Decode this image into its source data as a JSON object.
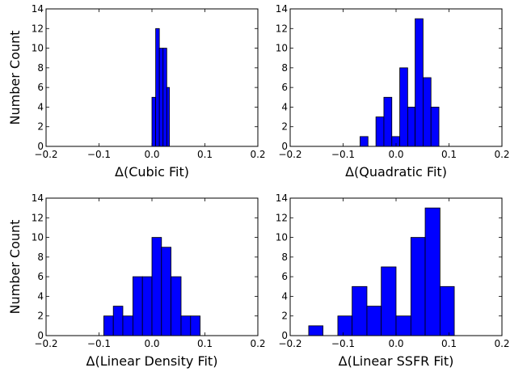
{
  "chart_data": [
    {
      "type": "bar",
      "xlabel": "Δ(Cubic Fit)",
      "ylabel": "Number Count",
      "xlim": [
        -0.2,
        0.2
      ],
      "ylim": [
        0,
        14
      ],
      "xticks": [
        -0.2,
        -0.1,
        0.0,
        0.1,
        0.2
      ],
      "xtick_labels": [
        "−0.2",
        "−0.1",
        "0.0",
        "0.1",
        "0.2"
      ],
      "yticks": [
        0,
        2,
        4,
        6,
        8,
        10,
        12,
        14
      ],
      "ytick_labels": [
        "0",
        "2",
        "4",
        "6",
        "8",
        "10",
        "12",
        "14"
      ],
      "bars": [
        {
          "x0": 0.0,
          "x1": 0.007,
          "count": 5
        },
        {
          "x0": 0.007,
          "x1": 0.014,
          "count": 12
        },
        {
          "x0": 0.014,
          "x1": 0.021,
          "count": 10
        },
        {
          "x0": 0.021,
          "x1": 0.028,
          "count": 10
        },
        {
          "x0": 0.028,
          "x1": 0.033,
          "count": 6
        }
      ],
      "bar_color": "#0000ff",
      "grid": false
    },
    {
      "type": "bar",
      "xlabel": "Δ(Quadratic Fit)",
      "ylabel": "",
      "xlim": [
        -0.2,
        0.2
      ],
      "ylim": [
        0,
        14
      ],
      "xticks": [
        -0.2,
        -0.1,
        0.0,
        0.1,
        0.2
      ],
      "xtick_labels": [
        "−0.2",
        "−0.1",
        "0.0",
        "0.1",
        "0.2"
      ],
      "yticks": [
        0,
        2,
        4,
        6,
        8,
        10,
        12,
        14
      ],
      "ytick_labels": [
        "0",
        "2",
        "4",
        "6",
        "8",
        "10",
        "12",
        "14"
      ],
      "bars": [
        {
          "x0": -0.068,
          "x1": -0.053,
          "count": 1
        },
        {
          "x0": -0.053,
          "x1": -0.038,
          "count": 0
        },
        {
          "x0": -0.038,
          "x1": -0.023,
          "count": 3
        },
        {
          "x0": -0.023,
          "x1": -0.008,
          "count": 5
        },
        {
          "x0": -0.008,
          "x1": 0.007,
          "count": 1
        },
        {
          "x0": 0.007,
          "x1": 0.022,
          "count": 8
        },
        {
          "x0": 0.022,
          "x1": 0.036,
          "count": 4
        },
        {
          "x0": 0.036,
          "x1": 0.051,
          "count": 13
        },
        {
          "x0": 0.051,
          "x1": 0.066,
          "count": 7
        },
        {
          "x0": 0.066,
          "x1": 0.081,
          "count": 4
        }
      ],
      "bar_color": "#0000ff",
      "grid": false
    },
    {
      "type": "bar",
      "xlabel": "Δ(Linear Density Fit)",
      "ylabel": "Number Count",
      "xlim": [
        -0.2,
        0.2
      ],
      "ylim": [
        0,
        14
      ],
      "xticks": [
        -0.2,
        -0.1,
        0.0,
        0.1,
        0.2
      ],
      "xtick_labels": [
        "−0.2",
        "−0.1",
        "0.0",
        "0.1",
        "0.2"
      ],
      "yticks": [
        0,
        2,
        4,
        6,
        8,
        10,
        12,
        14
      ],
      "ytick_labels": [
        "0",
        "2",
        "4",
        "6",
        "8",
        "10",
        "12",
        "14"
      ],
      "bars": [
        {
          "x0": -0.091,
          "x1": -0.073,
          "count": 2
        },
        {
          "x0": -0.073,
          "x1": -0.055,
          "count": 3
        },
        {
          "x0": -0.055,
          "x1": -0.036,
          "count": 2
        },
        {
          "x0": -0.036,
          "x1": -0.018,
          "count": 6
        },
        {
          "x0": -0.018,
          "x1": 0.0,
          "count": 6
        },
        {
          "x0": 0.0,
          "x1": 0.018,
          "count": 10
        },
        {
          "x0": 0.018,
          "x1": 0.036,
          "count": 9
        },
        {
          "x0": 0.036,
          "x1": 0.055,
          "count": 6
        },
        {
          "x0": 0.055,
          "x1": 0.073,
          "count": 2
        },
        {
          "x0": 0.073,
          "x1": 0.091,
          "count": 2
        }
      ],
      "bar_color": "#0000ff",
      "grid": false
    },
    {
      "type": "bar",
      "xlabel": "Δ(Linear SSFR Fit)",
      "ylabel": "",
      "xlim": [
        -0.2,
        0.2
      ],
      "ylim": [
        0,
        14
      ],
      "xticks": [
        -0.2,
        -0.1,
        0.0,
        0.1,
        0.2
      ],
      "xtick_labels": [
        "−0.2",
        "−0.1",
        "0.0",
        "0.1",
        "0.2"
      ],
      "yticks": [
        0,
        2,
        4,
        6,
        8,
        10,
        12,
        14
      ],
      "ytick_labels": [
        "0",
        "2",
        "4",
        "6",
        "8",
        "10",
        "12",
        "14"
      ],
      "bars": [
        {
          "x0": -0.165,
          "x1": -0.138,
          "count": 1
        },
        {
          "x0": -0.138,
          "x1": -0.11,
          "count": 0
        },
        {
          "x0": -0.11,
          "x1": -0.083,
          "count": 2
        },
        {
          "x0": -0.083,
          "x1": -0.055,
          "count": 5
        },
        {
          "x0": -0.055,
          "x1": -0.028,
          "count": 3
        },
        {
          "x0": -0.028,
          "x1": 0.0,
          "count": 7
        },
        {
          "x0": 0.0,
          "x1": 0.028,
          "count": 2
        },
        {
          "x0": 0.028,
          "x1": 0.055,
          "count": 10
        },
        {
          "x0": 0.055,
          "x1": 0.083,
          "count": 13
        },
        {
          "x0": 0.083,
          "x1": 0.11,
          "count": 5
        }
      ],
      "bar_color": "#0000ff",
      "grid": false
    }
  ]
}
